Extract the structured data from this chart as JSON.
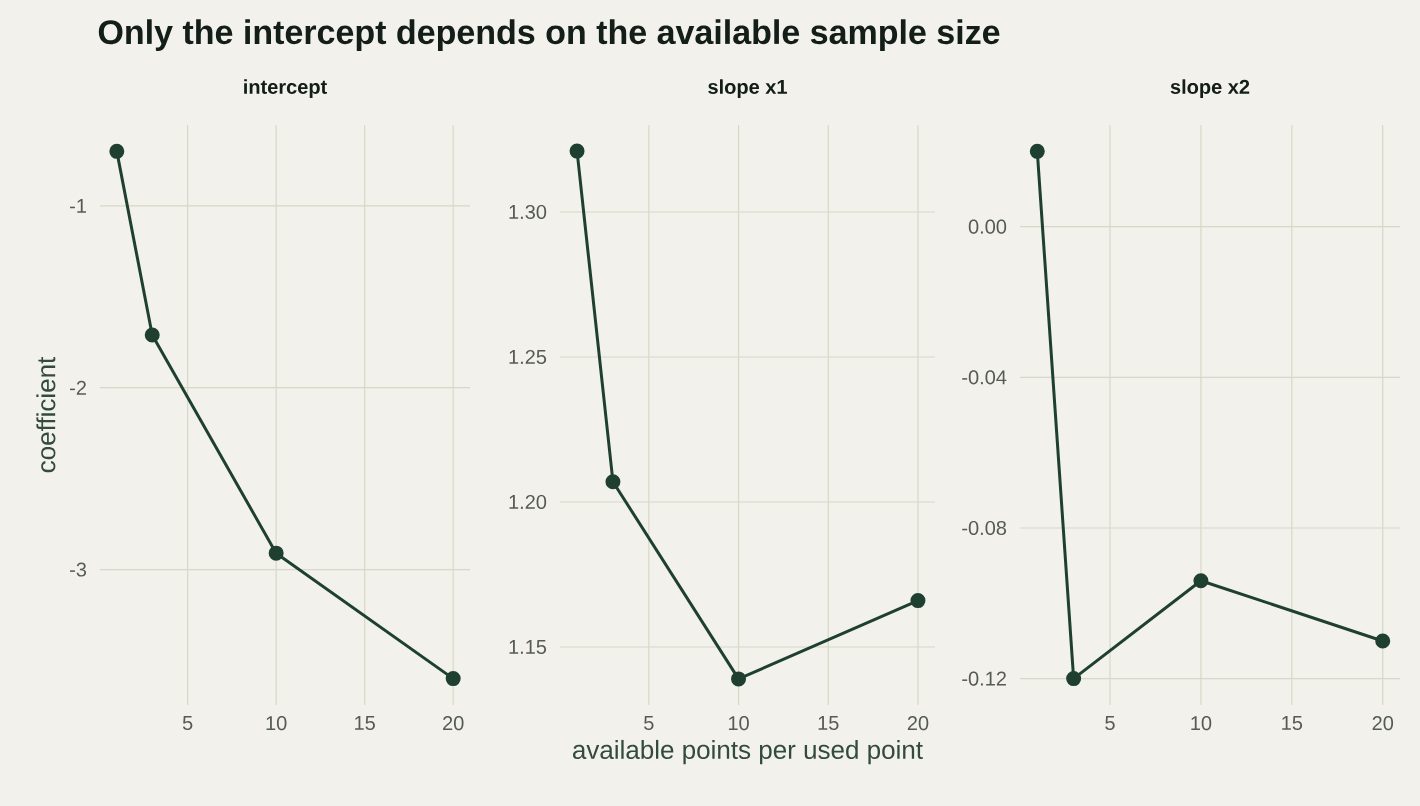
{
  "chart_data": [
    {
      "type": "line",
      "title": "intercept",
      "ylabel": "coefficient",
      "annotations": [
        "Only the intercept depends on the available sample size"
      ],
      "x": [
        1,
        3,
        10,
        20
      ],
      "values": [
        -0.7,
        -1.71,
        -2.91,
        -3.6
      ],
      "color": "#1f4030",
      "marker": "circle",
      "line_style": "solid",
      "grid": true,
      "xlim": [
        0.05,
        20.95
      ],
      "ylim": [
        -3.745,
        -0.555
      ],
      "xticks": [
        5,
        10,
        15,
        20
      ],
      "yticks": [
        -3,
        -2,
        -1
      ]
    },
    {
      "type": "line",
      "title": "slope x1",
      "xlabel": "available points per used point",
      "x": [
        1,
        3,
        10,
        20
      ],
      "values": [
        1.321,
        1.207,
        1.139,
        1.166
      ],
      "color": "#1f4030",
      "marker": "circle",
      "line_style": "solid",
      "grid": true,
      "xlim": [
        0.05,
        20.95
      ],
      "ylim": [
        1.13,
        1.33
      ],
      "xticks": [
        5,
        10,
        15,
        20
      ],
      "yticks": [
        {
          "value": 1.15,
          "label": "1.15"
        },
        {
          "value": 1.2,
          "label": "1.20"
        },
        {
          "value": 1.25,
          "label": "1.25"
        },
        {
          "value": 1.3,
          "label": "1.30"
        }
      ]
    },
    {
      "type": "line",
      "title": "slope x2",
      "x": [
        1,
        3,
        10,
        20
      ],
      "values": [
        0.02,
        -0.12,
        -0.094,
        -0.11
      ],
      "color": "#1f4030",
      "marker": "circle",
      "line_style": "solid",
      "grid": true,
      "xlim": [
        0.05,
        20.95
      ],
      "ylim": [
        -0.127,
        0.027
      ],
      "xticks": [
        5,
        10,
        15,
        20
      ],
      "yticks": [
        {
          "value": -0.12,
          "label": "-0.12"
        },
        {
          "value": -0.08,
          "label": "-0.08"
        },
        {
          "value": -0.04,
          "label": "-0.04"
        },
        {
          "value": 0.0,
          "label": "0.00"
        }
      ]
    }
  ]
}
